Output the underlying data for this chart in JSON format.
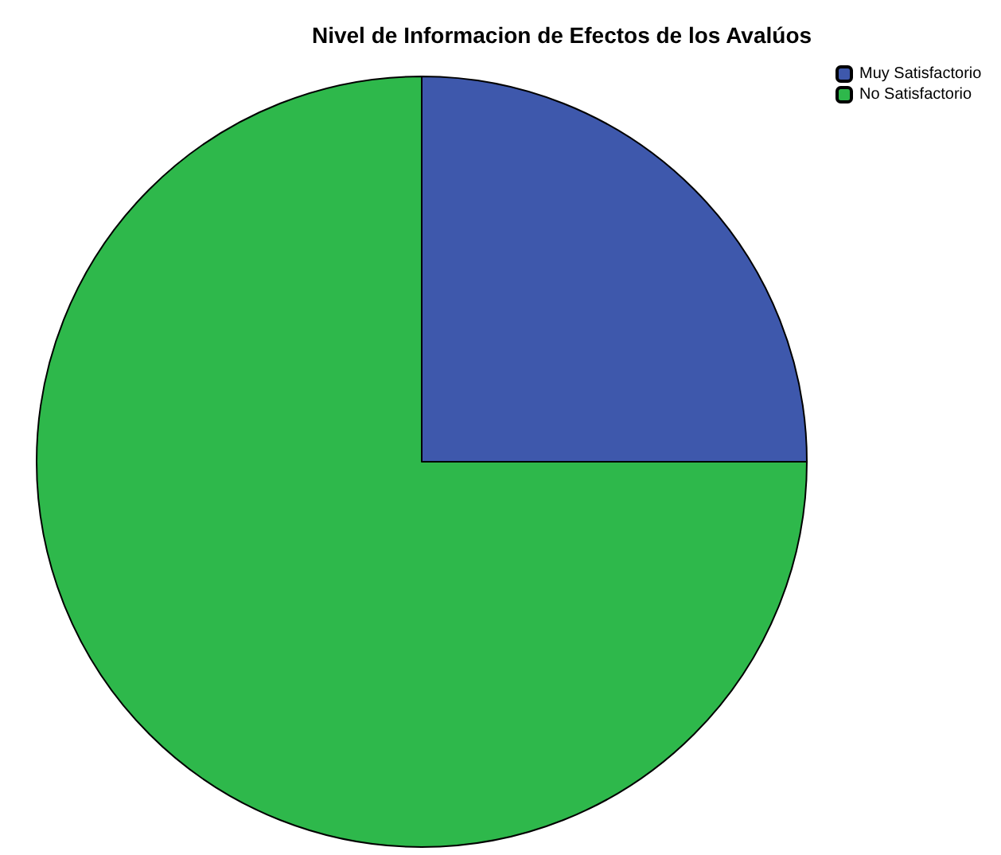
{
  "chart_data": {
    "type": "pie",
    "title": "Nivel de Informacion de Efectos de los Avalúos",
    "categories": [
      "Muy Satisfactorio",
      "No Satisfactorio"
    ],
    "values": [
      25,
      75
    ],
    "colors": [
      "#3e58ac",
      "#2eb84b"
    ],
    "legend": "top right"
  }
}
